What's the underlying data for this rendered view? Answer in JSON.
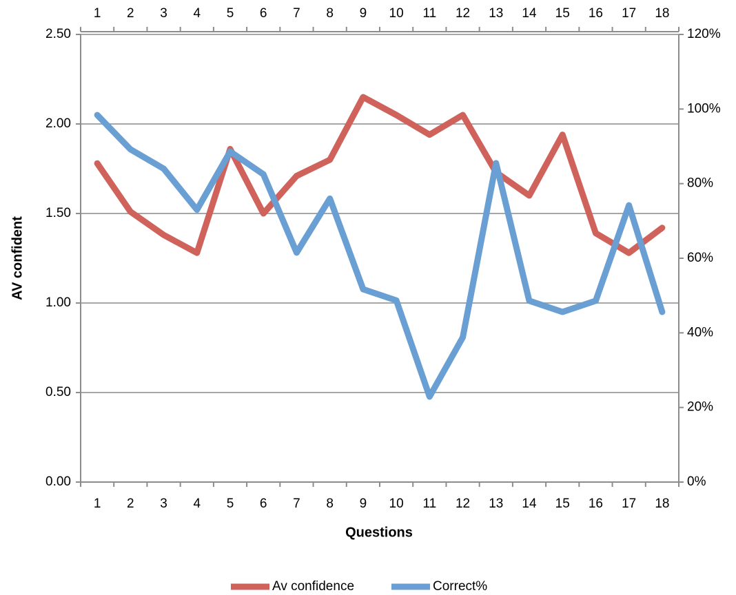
{
  "chart_data": {
    "type": "line",
    "x_label": "Questions",
    "y_label": "AV confident",
    "categories": [
      "1",
      "2",
      "3",
      "4",
      "5",
      "6",
      "7",
      "8",
      "9",
      "10",
      "11",
      "12",
      "13",
      "14",
      "15",
      "16",
      "17",
      "18"
    ],
    "series": [
      {
        "name": "Av confidence",
        "color": "#d0625c",
        "axis": "y",
        "values": [
          1.78,
          1.51,
          1.38,
          1.28,
          1.86,
          1.5,
          1.71,
          1.8,
          2.15,
          2.05,
          1.94,
          2.05,
          1.73,
          1.6,
          1.94,
          1.39,
          1.28,
          1.42
        ]
      },
      {
        "name": "Correct%",
        "color": "#6a9fd4",
        "axis": "y2",
        "values": [
          98.4,
          89.2,
          84,
          73,
          88.6,
          82.5,
          61.5,
          76,
          51.7,
          48.7,
          22.9,
          38.8,
          85.5,
          48.6,
          45.6,
          48.6,
          74.2,
          45.6
        ]
      }
    ],
    "ylim": [
      0,
      2.5
    ],
    "yticks": [
      {
        "value": 0,
        "label": "0.00"
      },
      {
        "value": 0.5,
        "label": "0.50"
      },
      {
        "value": 1,
        "label": "1.00"
      },
      {
        "value": 1.5,
        "label": "1.50"
      },
      {
        "value": 2,
        "label": "2.00"
      },
      {
        "value": 2.5,
        "label": "2.50"
      }
    ],
    "y2lim": [
      0,
      120
    ],
    "y2ticks": [
      {
        "value": 0,
        "label": "0%"
      },
      {
        "value": 20,
        "label": "20%"
      },
      {
        "value": 40,
        "label": "40%"
      },
      {
        "value": 60,
        "label": "60%"
      },
      {
        "value": 80,
        "label": "80%"
      },
      {
        "value": 100,
        "label": "100%"
      },
      {
        "value": 120,
        "label": "120%"
      }
    ],
    "grid": true,
    "legend": "bottom"
  }
}
